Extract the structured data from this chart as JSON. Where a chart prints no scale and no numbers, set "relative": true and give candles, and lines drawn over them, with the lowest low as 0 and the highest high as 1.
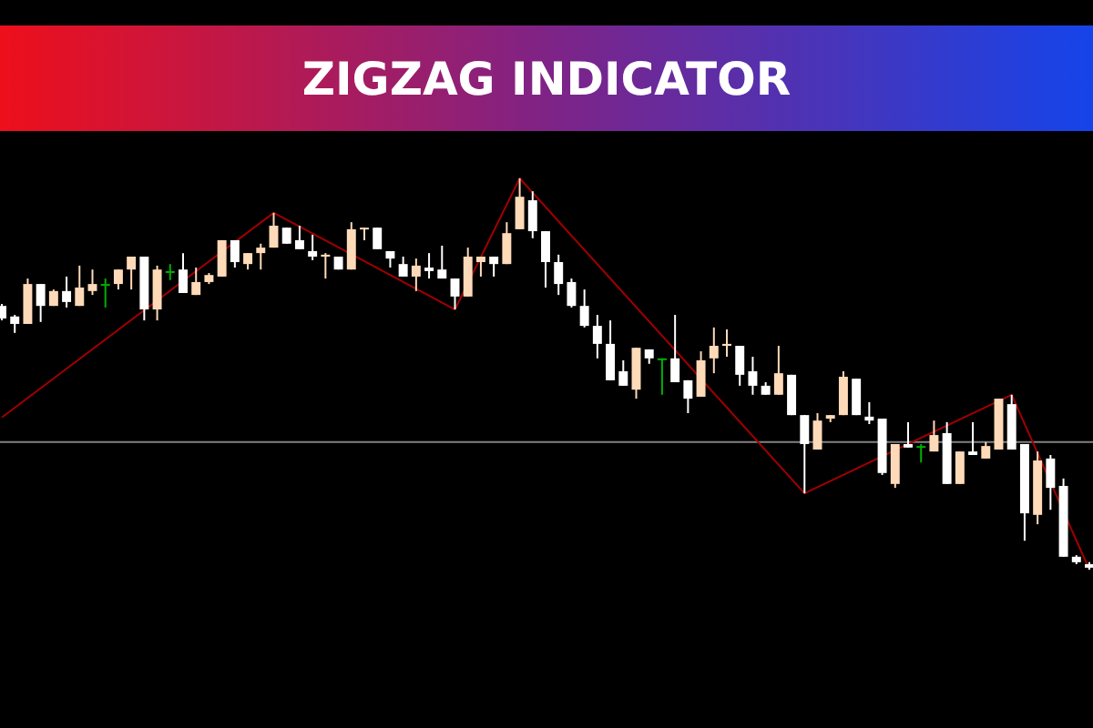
{
  "chart_data": {
    "type": "candlestick",
    "title": "ZIGZAG INDICATOR",
    "relative": true,
    "grid": false,
    "categories": [
      null,
      null,
      null,
      null,
      null,
      null,
      null,
      null,
      null,
      null,
      null,
      null,
      null,
      null,
      null,
      null,
      null,
      null,
      null,
      null,
      null,
      null,
      null,
      null,
      null,
      null,
      null,
      null,
      null,
      null,
      null,
      null,
      null,
      null,
      null,
      null,
      null,
      null,
      null,
      null,
      null,
      null,
      null,
      null,
      null,
      null,
      null,
      null,
      null,
      null,
      null,
      null,
      null,
      null,
      null,
      null,
      null,
      null,
      null,
      null,
      null,
      null,
      null,
      null,
      null,
      null,
      null,
      null,
      null,
      null,
      null,
      null,
      null,
      null,
      null,
      null,
      null,
      null,
      null,
      null,
      null,
      null,
      null,
      null,
      null
    ],
    "ohlc": [
      [
        0.674,
        0.679,
        0.637,
        0.642
      ],
      [
        0.647,
        0.651,
        0.605,
        0.628
      ],
      [
        0.628,
        0.744,
        0.628,
        0.73
      ],
      [
        0.73,
        0.73,
        0.633,
        0.674
      ],
      [
        0.674,
        0.716,
        0.674,
        0.712
      ],
      [
        0.712,
        0.749,
        0.67,
        0.684
      ],
      [
        0.674,
        0.777,
        0.674,
        0.721
      ],
      [
        0.712,
        0.767,
        0.702,
        0.73
      ],
      [
        0.73,
        0.744,
        0.67,
        0.73
      ],
      [
        0.73,
        0.767,
        0.716,
        0.767
      ],
      [
        0.767,
        0.8,
        0.716,
        0.8
      ],
      [
        0.8,
        0.8,
        0.637,
        0.665
      ],
      [
        0.665,
        0.777,
        0.637,
        0.767
      ],
      [
        0.763,
        0.781,
        0.74,
        0.763
      ],
      [
        0.767,
        0.809,
        0.707,
        0.707
      ],
      [
        0.702,
        0.772,
        0.702,
        0.735
      ],
      [
        0.735,
        0.758,
        0.73,
        0.753
      ],
      [
        0.749,
        0.842,
        0.749,
        0.842
      ],
      [
        0.842,
        0.842,
        0.772,
        0.786
      ],
      [
        0.781,
        0.809,
        0.767,
        0.809
      ],
      [
        0.809,
        0.833,
        0.767,
        0.823
      ],
      [
        0.823,
        0.912,
        0.823,
        0.879
      ],
      [
        0.874,
        0.874,
        0.833,
        0.833
      ],
      [
        0.842,
        0.879,
        0.819,
        0.819
      ],
      [
        0.814,
        0.856,
        0.791,
        0.8
      ],
      [
        0.8,
        0.809,
        0.744,
        0.805
      ],
      [
        0.8,
        0.8,
        0.767,
        0.767
      ],
      [
        0.767,
        0.888,
        0.767,
        0.87
      ],
      [
        0.87,
        0.874,
        0.842,
        0.874
      ],
      [
        0.874,
        0.874,
        0.819,
        0.819
      ],
      [
        0.814,
        0.814,
        0.772,
        0.795
      ],
      [
        0.781,
        0.8,
        0.749,
        0.749
      ],
      [
        0.749,
        0.795,
        0.712,
        0.777
      ],
      [
        0.772,
        0.809,
        0.744,
        0.763
      ],
      [
        0.767,
        0.828,
        0.744,
        0.744
      ],
      [
        0.744,
        0.744,
        0.665,
        0.698
      ],
      [
        0.698,
        0.823,
        0.698,
        0.8
      ],
      [
        0.786,
        0.8,
        0.749,
        0.8
      ],
      [
        0.8,
        0.8,
        0.749,
        0.781
      ],
      [
        0.781,
        0.888,
        0.781,
        0.86
      ],
      [
        0.87,
        1.0,
        0.87,
        0.953
      ],
      [
        0.944,
        0.967,
        0.847,
        0.865
      ],
      [
        0.865,
        0.865,
        0.721,
        0.786
      ],
      [
        0.786,
        0.805,
        0.702,
        0.73
      ],
      [
        0.735,
        0.744,
        0.67,
        0.674
      ],
      [
        0.674,
        0.716,
        0.619,
        0.623
      ],
      [
        0.623,
        0.651,
        0.54,
        0.577
      ],
      [
        0.577,
        0.637,
        0.484,
        0.484
      ],
      [
        0.507,
        0.535,
        0.47,
        0.47
      ],
      [
        0.46,
        0.567,
        0.437,
        0.567
      ],
      [
        0.563,
        0.563,
        0.526,
        0.54
      ],
      [
        0.54,
        0.54,
        0.447,
        0.54
      ],
      [
        0.54,
        0.651,
        0.479,
        0.479
      ],
      [
        0.484,
        0.484,
        0.4,
        0.437
      ],
      [
        0.442,
        0.558,
        0.442,
        0.535
      ],
      [
        0.54,
        0.619,
        0.502,
        0.572
      ],
      [
        0.572,
        0.614,
        0.544,
        0.577
      ],
      [
        0.572,
        0.572,
        0.47,
        0.498
      ],
      [
        0.507,
        0.544,
        0.447,
        0.47
      ],
      [
        0.47,
        0.479,
        0.447,
        0.447
      ],
      [
        0.447,
        0.572,
        0.447,
        0.502
      ],
      [
        0.498,
        0.498,
        0.395,
        0.395
      ],
      [
        0.395,
        0.395,
        0.195,
        0.321
      ],
      [
        0.307,
        0.4,
        0.307,
        0.381
      ],
      [
        0.386,
        0.395,
        0.377,
        0.395
      ],
      [
        0.395,
        0.507,
        0.395,
        0.493
      ],
      [
        0.488,
        0.488,
        0.395,
        0.395
      ],
      [
        0.391,
        0.428,
        0.372,
        0.381
      ],
      [
        0.386,
        0.386,
        0.242,
        0.247
      ],
      [
        0.219,
        0.321,
        0.209,
        0.321
      ],
      [
        0.321,
        0.377,
        0.312,
        0.312
      ],
      [
        0.316,
        0.321,
        0.274,
        0.316
      ],
      [
        0.302,
        0.381,
        0.302,
        0.344
      ],
      [
        0.349,
        0.377,
        0.219,
        0.219
      ],
      [
        0.219,
        0.302,
        0.219,
        0.302
      ],
      [
        0.302,
        0.377,
        0.293,
        0.293
      ],
      [
        0.284,
        0.326,
        0.284,
        0.316
      ],
      [
        0.307,
        0.437,
        0.307,
        0.437
      ],
      [
        0.423,
        0.447,
        0.307,
        0.307
      ],
      [
        0.321,
        0.321,
        0.074,
        0.144
      ],
      [
        0.14,
        0.302,
        0.116,
        0.279
      ],
      [
        0.284,
        0.293,
        0.153,
        0.209
      ],
      [
        0.214,
        0.233,
        0.033,
        0.033
      ],
      [
        0.033,
        0.037,
        0.014,
        0.019
      ],
      [
        0.014,
        0.019,
        0.0,
        0.005
      ]
    ],
    "colors": [
      "#ffffff",
      "#ffffff",
      "#ffdab9",
      "#ffffff",
      "#ffdab9",
      "#ffffff",
      "#ffdab9",
      "#ffdab9",
      "#00b000",
      "#ffdab9",
      "#ffdab9",
      "#ffffff",
      "#ffdab9",
      "#00b000",
      "#ffffff",
      "#ffdab9",
      "#ffdab9",
      "#ffdab9",
      "#ffffff",
      "#ffdab9",
      "#ffdab9",
      "#ffdab9",
      "#ffffff",
      "#ffffff",
      "#ffffff",
      "#ffdab9",
      "#ffffff",
      "#ffdab9",
      "#ffdab9",
      "#ffffff",
      "#ffffff",
      "#ffffff",
      "#ffdab9",
      "#ffffff",
      "#ffffff",
      "#ffffff",
      "#ffdab9",
      "#ffdab9",
      "#ffffff",
      "#ffdab9",
      "#ffdab9",
      "#ffffff",
      "#ffffff",
      "#ffffff",
      "#ffffff",
      "#ffffff",
      "#ffffff",
      "#ffffff",
      "#ffffff",
      "#ffdab9",
      "#ffffff",
      "#00b000",
      "#ffffff",
      "#ffffff",
      "#ffdab9",
      "#ffdab9",
      "#ffdab9",
      "#ffffff",
      "#ffffff",
      "#ffffff",
      "#ffdab9",
      "#ffffff",
      "#ffffff",
      "#ffdab9",
      "#ffdab9",
      "#ffdab9",
      "#ffffff",
      "#ffffff",
      "#ffffff",
      "#ffdab9",
      "#ffffff",
      "#00b000",
      "#ffdab9",
      "#ffffff",
      "#ffdab9",
      "#ffffff",
      "#ffdab9",
      "#ffdab9",
      "#ffffff",
      "#ffffff",
      "#ffdab9",
      "#ffffff",
      "#ffffff",
      "#ffffff",
      "#ffffff"
    ],
    "series": [
      {
        "type": "line",
        "color": "#a00000",
        "values": [
          0.389,
          null,
          null,
          null,
          null,
          null,
          null,
          null,
          null,
          null,
          null,
          null,
          null,
          null,
          null,
          null,
          null,
          null,
          null,
          null,
          null,
          0.912,
          null,
          null,
          null,
          null,
          null,
          null,
          null,
          null,
          null,
          null,
          null,
          null,
          null,
          0.665,
          null,
          null,
          null,
          null,
          1.0,
          null,
          null,
          null,
          null,
          null,
          null,
          null,
          null,
          null,
          null,
          null,
          null,
          null,
          null,
          null,
          null,
          null,
          null,
          null,
          null,
          null,
          0.195,
          null,
          null,
          null,
          null,
          null,
          null,
          null,
          null,
          null,
          null,
          null,
          null,
          null,
          null,
          null,
          0.447,
          null,
          null,
          null,
          null,
          null,
          0.0
        ]
      }
    ],
    "ref_lines": [
      {
        "axis": "y",
        "value": 0.326,
        "color": "#808080"
      }
    ]
  }
}
